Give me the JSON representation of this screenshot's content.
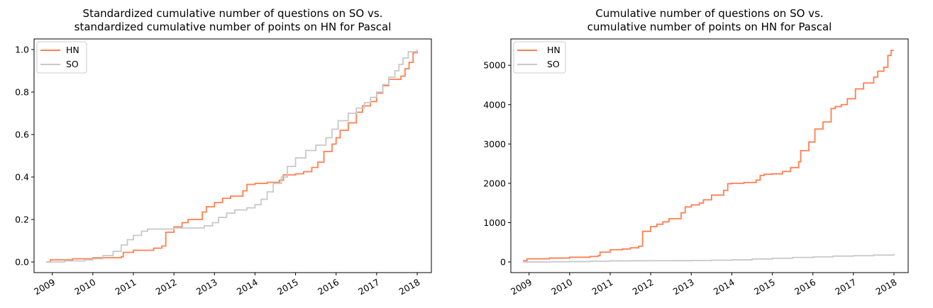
{
  "chart_data": [
    {
      "type": "line",
      "title": [
        "Standardized cumulative number of questions on SO vs.",
        "standardized cumulative number of points on HN for Pascal"
      ],
      "xlabel": "",
      "ylabel": "",
      "xlim": [
        2008.55,
        2018.35
      ],
      "ylim": [
        -0.05,
        1.05
      ],
      "x_ticks": [
        2009,
        2010,
        2011,
        2012,
        2013,
        2014,
        2015,
        2016,
        2017,
        2018
      ],
      "x_tick_labels": [
        "2009",
        "2010",
        "2011",
        "2012",
        "2013",
        "2014",
        "2015",
        "2016",
        "2017",
        "2018"
      ],
      "y_ticks": [
        0.0,
        0.2,
        0.4,
        0.6,
        0.8,
        1.0
      ],
      "y_tick_labels": [
        "0.0",
        "0.2",
        "0.4",
        "0.6",
        "0.8",
        "1.0"
      ],
      "legend_position": "top-left",
      "grid": false,
      "series": [
        {
          "name": "HN",
          "color": "#ff7f50",
          "step": true,
          "points": [
            [
              2008.85,
              0.0
            ],
            [
              2008.95,
              0.01
            ],
            [
              2009.5,
              0.015
            ],
            [
              2010.0,
              0.02
            ],
            [
              2010.7,
              0.025
            ],
            [
              2010.75,
              0.045
            ],
            [
              2011.0,
              0.055
            ],
            [
              2011.5,
              0.065
            ],
            [
              2011.7,
              0.075
            ],
            [
              2011.8,
              0.14
            ],
            [
              2012.0,
              0.165
            ],
            [
              2012.2,
              0.185
            ],
            [
              2012.35,
              0.2
            ],
            [
              2012.7,
              0.235
            ],
            [
              2012.8,
              0.26
            ],
            [
              2013.0,
              0.28
            ],
            [
              2013.2,
              0.3
            ],
            [
              2013.4,
              0.31
            ],
            [
              2013.7,
              0.335
            ],
            [
              2013.8,
              0.365
            ],
            [
              2014.0,
              0.37
            ],
            [
              2014.3,
              0.375
            ],
            [
              2014.6,
              0.385
            ],
            [
              2014.7,
              0.41
            ],
            [
              2015.0,
              0.415
            ],
            [
              2015.2,
              0.425
            ],
            [
              2015.4,
              0.445
            ],
            [
              2015.55,
              0.47
            ],
            [
              2015.7,
              0.52
            ],
            [
              2015.9,
              0.555
            ],
            [
              2016.0,
              0.585
            ],
            [
              2016.1,
              0.62
            ],
            [
              2016.3,
              0.655
            ],
            [
              2016.5,
              0.705
            ],
            [
              2016.65,
              0.735
            ],
            [
              2016.85,
              0.755
            ],
            [
              2017.0,
              0.795
            ],
            [
              2017.15,
              0.83
            ],
            [
              2017.3,
              0.86
            ],
            [
              2017.6,
              0.875
            ],
            [
              2017.7,
              0.91
            ],
            [
              2017.8,
              0.94
            ],
            [
              2017.9,
              0.985
            ],
            [
              2018.0,
              1.0
            ]
          ]
        },
        {
          "name": "SO",
          "color": "#c8c8c8",
          "step": true,
          "points": [
            [
              2008.85,
              0.0
            ],
            [
              2009.3,
              0.005
            ],
            [
              2009.8,
              0.01
            ],
            [
              2010.0,
              0.015
            ],
            [
              2010.25,
              0.03
            ],
            [
              2010.5,
              0.05
            ],
            [
              2010.7,
              0.08
            ],
            [
              2010.85,
              0.105
            ],
            [
              2011.0,
              0.125
            ],
            [
              2011.2,
              0.145
            ],
            [
              2011.35,
              0.155
            ],
            [
              2011.7,
              0.155
            ],
            [
              2012.0,
              0.16
            ],
            [
              2012.5,
              0.16
            ],
            [
              2012.75,
              0.17
            ],
            [
              2012.95,
              0.185
            ],
            [
              2013.1,
              0.21
            ],
            [
              2013.3,
              0.23
            ],
            [
              2013.5,
              0.245
            ],
            [
              2013.8,
              0.255
            ],
            [
              2014.0,
              0.27
            ],
            [
              2014.15,
              0.295
            ],
            [
              2014.3,
              0.33
            ],
            [
              2014.45,
              0.37
            ],
            [
              2014.65,
              0.4
            ],
            [
              2014.8,
              0.45
            ],
            [
              2015.0,
              0.49
            ],
            [
              2015.25,
              0.525
            ],
            [
              2015.5,
              0.55
            ],
            [
              2015.75,
              0.585
            ],
            [
              2015.9,
              0.625
            ],
            [
              2016.05,
              0.665
            ],
            [
              2016.3,
              0.7
            ],
            [
              2016.5,
              0.725
            ],
            [
              2016.7,
              0.75
            ],
            [
              2016.85,
              0.775
            ],
            [
              2017.0,
              0.8
            ],
            [
              2017.15,
              0.835
            ],
            [
              2017.3,
              0.87
            ],
            [
              2017.45,
              0.9
            ],
            [
              2017.55,
              0.93
            ],
            [
              2017.65,
              0.96
            ],
            [
              2017.78,
              0.99
            ],
            [
              2018.0,
              1.0
            ]
          ]
        }
      ]
    },
    {
      "type": "line",
      "title": [
        "Cumulative number of questions on SO vs.",
        "cumulative number of points on HN for Pascal"
      ],
      "xlabel": "",
      "ylabel": "",
      "xlim": [
        2008.55,
        2018.35
      ],
      "ylim": [
        -270,
        5670
      ],
      "x_ticks": [
        2009,
        2010,
        2011,
        2012,
        2013,
        2014,
        2015,
        2016,
        2017,
        2018
      ],
      "x_tick_labels": [
        "2009",
        "2010",
        "2011",
        "2012",
        "2013",
        "2014",
        "2015",
        "2016",
        "2017",
        "2018"
      ],
      "y_ticks": [
        0,
        1000,
        2000,
        3000,
        4000,
        5000
      ],
      "y_tick_labels": [
        "0",
        "1000",
        "2000",
        "3000",
        "4000",
        "5000"
      ],
      "legend_position": "top-left",
      "grid": false,
      "series": [
        {
          "name": "HN",
          "color": "#ff7f50",
          "step": true,
          "points": [
            [
              2008.85,
              30
            ],
            [
              2008.95,
              80
            ],
            [
              2009.5,
              100
            ],
            [
              2010.0,
              120
            ],
            [
              2010.5,
              140
            ],
            [
              2010.7,
              160
            ],
            [
              2010.75,
              250
            ],
            [
              2011.0,
              310
            ],
            [
              2011.3,
              330
            ],
            [
              2011.5,
              360
            ],
            [
              2011.7,
              400
            ],
            [
              2011.8,
              780
            ],
            [
              2012.0,
              900
            ],
            [
              2012.15,
              960
            ],
            [
              2012.3,
              1020
            ],
            [
              2012.45,
              1100
            ],
            [
              2012.75,
              1250
            ],
            [
              2012.85,
              1400
            ],
            [
              2013.0,
              1450
            ],
            [
              2013.2,
              1500
            ],
            [
              2013.3,
              1580
            ],
            [
              2013.5,
              1700
            ],
            [
              2013.8,
              1820
            ],
            [
              2013.9,
              1990
            ],
            [
              2014.0,
              2000
            ],
            [
              2014.3,
              2020
            ],
            [
              2014.6,
              2080
            ],
            [
              2014.7,
              2200
            ],
            [
              2014.8,
              2230
            ],
            [
              2015.0,
              2240
            ],
            [
              2015.25,
              2300
            ],
            [
              2015.45,
              2400
            ],
            [
              2015.65,
              2550
            ],
            [
              2015.7,
              2830
            ],
            [
              2015.9,
              3050
            ],
            [
              2016.05,
              3380
            ],
            [
              2016.25,
              3560
            ],
            [
              2016.45,
              3900
            ],
            [
              2016.55,
              3950
            ],
            [
              2016.7,
              4000
            ],
            [
              2016.85,
              4150
            ],
            [
              2017.05,
              4400
            ],
            [
              2017.25,
              4550
            ],
            [
              2017.5,
              4700
            ],
            [
              2017.6,
              4850
            ],
            [
              2017.75,
              4950
            ],
            [
              2017.85,
              5250
            ],
            [
              2017.93,
              5380
            ],
            [
              2018.0,
              5380
            ]
          ]
        },
        {
          "name": "SO",
          "color": "#c8c8c8",
          "step": true,
          "points": [
            [
              2008.85,
              0
            ],
            [
              2009.5,
              5
            ],
            [
              2010.0,
              10
            ],
            [
              2010.5,
              20
            ],
            [
              2011.0,
              28
            ],
            [
              2011.5,
              30
            ],
            [
              2012.0,
              32
            ],
            [
              2012.5,
              33
            ],
            [
              2013.0,
              38
            ],
            [
              2013.5,
              45
            ],
            [
              2014.0,
              55
            ],
            [
              2014.5,
              75
            ],
            [
              2015.0,
              95
            ],
            [
              2015.5,
              115
            ],
            [
              2016.0,
              130
            ],
            [
              2016.5,
              150
            ],
            [
              2017.0,
              160
            ],
            [
              2017.5,
              175
            ],
            [
              2018.0,
              200
            ]
          ]
        }
      ]
    }
  ]
}
